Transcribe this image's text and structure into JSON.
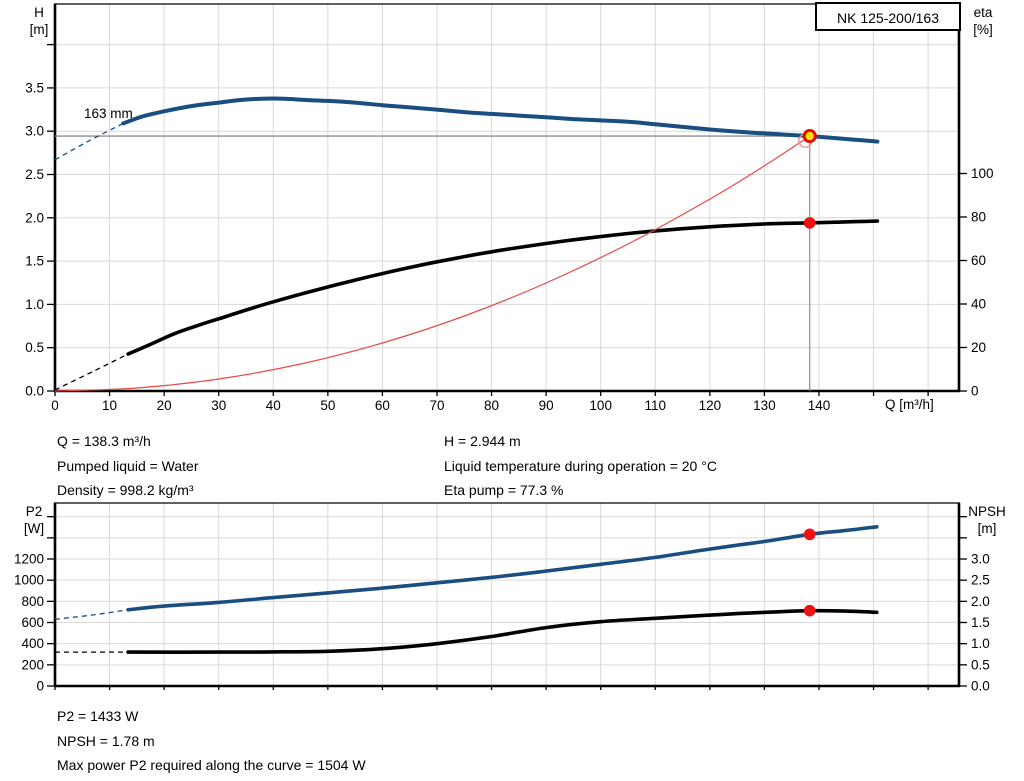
{
  "title_box": "NK 125-200/163",
  "colors": {
    "curve_blue": "#1a4d80",
    "curve_black": "#000000",
    "system_red": "#e84a44",
    "marker_red": "#ee1111",
    "marker_ring_red": "#ef0000",
    "marker_yellow": "#ffdf00",
    "requested_ring": "#f59090",
    "grid": "#d9d9d9",
    "duty_line": "#8e8e8e",
    "axis": "#000000"
  },
  "duty": {
    "q": 138.3,
    "h": 2.944,
    "eta": 77.3,
    "p2": 1433,
    "npsh": 1.78
  },
  "requested_marker": {
    "q": 137.5,
    "h": 2.89
  },
  "info": {
    "left": [
      "Q = 138.3 m³/h",
      "Pumped liquid = Water",
      "Density = 998.2 kg/m³"
    ],
    "right": [
      "H = 2.944 m",
      "Liquid temperature during operation = 20 °C",
      "Eta pump = 77.3 %"
    ],
    "bottom": [
      "P2 = 1433 W",
      "NPSH = 1.78 m",
      "Max power P2 required along the curve = 1504 W"
    ]
  },
  "chart_data": [
    {
      "id": "qh-eta-chart",
      "type": "line",
      "x_axis": {
        "label": "Q [m³/h]",
        "min": 0,
        "max": 165.7,
        "tick_values": [
          0,
          10,
          20,
          30,
          40,
          50,
          60,
          70,
          80,
          90,
          100,
          110,
          120,
          130,
          140,
          150,
          160
        ],
        "tick_labels": [
          "0",
          "10",
          "20",
          "30",
          "40",
          "50",
          "60",
          "70",
          "80",
          "90",
          "100",
          "110",
          "120",
          "130",
          "140"
        ]
      },
      "left_axis": {
        "unit_lines": [
          "H",
          "[m]"
        ],
        "min": 0,
        "max": 4.47,
        "tick_values": [
          0,
          0.5,
          1,
          1.5,
          2,
          2.5,
          3,
          3.5,
          4
        ],
        "tick_labels": [
          "0.0",
          "0.5",
          "1.0",
          "1.5",
          "2.0",
          "2.5",
          "3.0",
          "3.5"
        ]
      },
      "right_axis": {
        "unit_lines": [
          "eta",
          "[%]"
        ],
        "min": 0,
        "max": 178,
        "tick_values": [
          0,
          20,
          40,
          60,
          80,
          100
        ],
        "tick_labels": [
          "0",
          "20",
          "40",
          "60",
          "80",
          "100"
        ]
      },
      "series": [
        {
          "name": "head-curve-163mm",
          "label": "163 mm",
          "axis": "left",
          "color": "#1a4d80",
          "width": 4,
          "lead_points": [
            [
              0,
              2.67
            ],
            [
              6,
              2.88
            ],
            [
              12.5,
              3.09
            ]
          ],
          "points": [
            [
              12.5,
              3.09
            ],
            [
              16,
              3.17
            ],
            [
              20,
              3.23
            ],
            [
              25,
              3.29
            ],
            [
              30,
              3.33
            ],
            [
              34,
              3.36
            ],
            [
              38,
              3.375
            ],
            [
              42,
              3.375
            ],
            [
              46,
              3.36
            ],
            [
              50,
              3.35
            ],
            [
              55,
              3.33
            ],
            [
              60,
              3.3
            ],
            [
              65,
              3.275
            ],
            [
              70,
              3.25
            ],
            [
              75,
              3.22
            ],
            [
              80,
              3.2
            ],
            [
              85,
              3.18
            ],
            [
              90,
              3.16
            ],
            [
              95,
              3.14
            ],
            [
              100,
              3.125
            ],
            [
              105,
              3.11
            ],
            [
              110,
              3.08
            ],
            [
              115,
              3.05
            ],
            [
              120,
              3.02
            ],
            [
              125,
              2.995
            ],
            [
              130,
              2.975
            ],
            [
              134,
              2.96
            ],
            [
              138.3,
              2.944
            ],
            [
              143,
              2.92
            ],
            [
              147,
              2.9
            ],
            [
              150.7,
              2.88
            ]
          ]
        },
        {
          "name": "efficiency-curve",
          "axis": "right",
          "color": "#000000",
          "width": 3.6,
          "lead_points": [
            [
              0,
              0.5
            ],
            [
              7,
              9
            ],
            [
              13.4,
              17
            ]
          ],
          "points": [
            [
              13.4,
              17
            ],
            [
              18,
              22
            ],
            [
              22,
              26.5
            ],
            [
              26.6,
              30.5
            ],
            [
              31,
              34
            ],
            [
              36,
              38
            ],
            [
              40,
              41
            ],
            [
              45,
              44.5
            ],
            [
              50,
              47.8
            ],
            [
              55,
              51
            ],
            [
              60,
              54
            ],
            [
              65,
              56.8
            ],
            [
              70,
              59.4
            ],
            [
              75,
              61.8
            ],
            [
              80,
              64
            ],
            [
              85,
              66
            ],
            [
              90,
              67.8
            ],
            [
              95,
              69.5
            ],
            [
              100,
              71
            ],
            [
              105,
              72.4
            ],
            [
              110,
              73.6
            ],
            [
              115,
              74.6
            ],
            [
              120,
              75.5
            ],
            [
              125,
              76.2
            ],
            [
              130,
              76.8
            ],
            [
              134,
              77.1
            ],
            [
              138.3,
              77.3
            ],
            [
              143,
              77.6
            ],
            [
              147,
              77.9
            ],
            [
              150.7,
              78.1
            ]
          ]
        },
        {
          "name": "system-curve",
          "axis": "left",
          "color": "#e84a44",
          "width": 1.2,
          "points": [
            [
              0,
              0
            ],
            [
              15,
              0.035
            ],
            [
              30,
              0.139
            ],
            [
              45,
              0.312
            ],
            [
              60,
              0.554
            ],
            [
              75,
              0.866
            ],
            [
              90,
              1.247
            ],
            [
              105,
              1.697
            ],
            [
              120,
              2.216
            ],
            [
              130,
              2.601
            ],
            [
              138.3,
              2.944
            ]
          ]
        }
      ]
    },
    {
      "id": "p2-npsh-chart",
      "type": "line",
      "x_axis": {
        "label": "",
        "min": 0,
        "max": 165.7,
        "tick_values": [
          0,
          10,
          20,
          30,
          40,
          50,
          60,
          70,
          80,
          90,
          100,
          110,
          120,
          130,
          140,
          150,
          160
        ],
        "tick_labels": []
      },
      "left_axis": {
        "unit_lines": [
          "P2",
          "[W]"
        ],
        "min": 0,
        "max": 1730,
        "tick_values": [
          0,
          200,
          400,
          600,
          800,
          1000,
          1200,
          1400,
          1600
        ],
        "tick_labels": [
          "0",
          "200",
          "400",
          "600",
          "800",
          "1000",
          "1200"
        ]
      },
      "right_axis": {
        "unit_lines": [
          "NPSH",
          "[m]"
        ],
        "min": 0,
        "max": 4.32,
        "tick_values": [
          0,
          0.5,
          1,
          1.5,
          2,
          2.5,
          3,
          3.5,
          4
        ],
        "tick_labels": [
          "0.0",
          "0.5",
          "1.0",
          "1.5",
          "2.0",
          "2.5",
          "3.0"
        ]
      },
      "series": [
        {
          "name": "p2-power-curve",
          "axis": "left",
          "color": "#1a4d80",
          "width": 3.6,
          "lead_points": [
            [
              0,
              630
            ],
            [
              7,
              672
            ],
            [
              13.4,
              720
            ]
          ],
          "points": [
            [
              13.4,
              720
            ],
            [
              20,
              755
            ],
            [
              30,
              790
            ],
            [
              40,
              835
            ],
            [
              50,
              880
            ],
            [
              60,
              925
            ],
            [
              70,
              975
            ],
            [
              81.5,
              1035
            ],
            [
              90.7,
              1090
            ],
            [
              100,
              1150
            ],
            [
              110,
              1215
            ],
            [
              118.2,
              1280
            ],
            [
              125,
              1330
            ],
            [
              130,
              1365
            ],
            [
              138.3,
              1433
            ],
            [
              145,
              1470
            ],
            [
              150.6,
              1504
            ]
          ]
        },
        {
          "name": "npsh-curve",
          "axis": "right",
          "color": "#000000",
          "width": 3.6,
          "lead_points": [
            [
              0,
              0.8
            ],
            [
              13.4,
              0.8
            ]
          ],
          "points": [
            [
              13.4,
              0.8
            ],
            [
              30,
              0.8
            ],
            [
              40,
              0.805
            ],
            [
              50,
              0.82
            ],
            [
              60,
              0.88
            ],
            [
              70,
              1.0
            ],
            [
              80,
              1.17
            ],
            [
              90,
              1.38
            ],
            [
              100,
              1.52
            ],
            [
              110,
              1.6
            ],
            [
              118,
              1.66
            ],
            [
              125,
              1.71
            ],
            [
              132,
              1.75
            ],
            [
              138.3,
              1.78
            ],
            [
              145,
              1.77
            ],
            [
              150.6,
              1.74
            ]
          ]
        }
      ]
    }
  ]
}
